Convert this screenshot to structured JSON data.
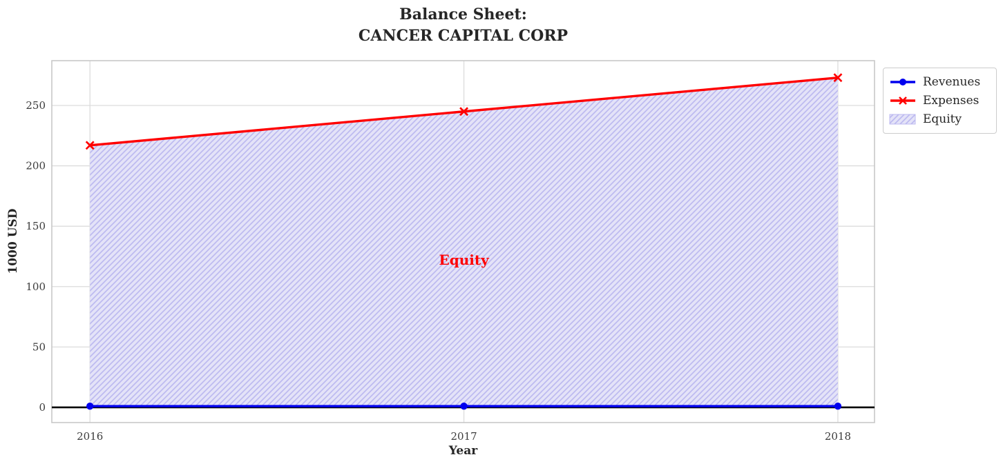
{
  "chart_data": {
    "type": "area",
    "title": "Balance Sheet:\nCANCER CAPITAL CORP",
    "title_lines": [
      "Balance Sheet:",
      "CANCER CAPITAL CORP"
    ],
    "xlabel": "Year",
    "ylabel": "1000 USD",
    "x": [
      2016,
      2017,
      2018
    ],
    "xtick_labels": [
      "2016",
      "2017",
      "2018"
    ],
    "yticks": [
      0,
      50,
      100,
      150,
      200,
      250
    ],
    "ytick_labels": [
      "0",
      "50",
      "100",
      "150",
      "200",
      "250"
    ],
    "xlim": [
      2015.898,
      2018.098
    ],
    "ylim": [
      -12.6,
      287.1
    ],
    "grid": true,
    "legend_position": "outside-upper-right",
    "series": [
      {
        "name": "Revenues",
        "type": "line",
        "marker": "circle",
        "color": "#0000ee",
        "values": [
          1,
          1,
          1
        ]
      },
      {
        "name": "Expenses",
        "type": "line",
        "marker": "x",
        "color": "#ff0000",
        "values": [
          217,
          245,
          273
        ]
      }
    ],
    "area": {
      "name": "Equity",
      "between": [
        "Revenues",
        "Expenses"
      ],
      "fill_color": "#e4e3f8",
      "hatch": "//",
      "hatch_color": "#bdbaf0"
    },
    "annotation": {
      "text": "Equity",
      "x": 2017,
      "y": 122,
      "color": "#ff0000"
    },
    "zero_line": {
      "y": 0,
      "color": "#000000"
    }
  },
  "colors": {
    "grid": "#dcdcdc",
    "spine": "#c8c8c8",
    "tick_text": "#3b3b3b",
    "label_text": "#262626",
    "legend_border": "#cccccc",
    "background": "#ffffff"
  }
}
